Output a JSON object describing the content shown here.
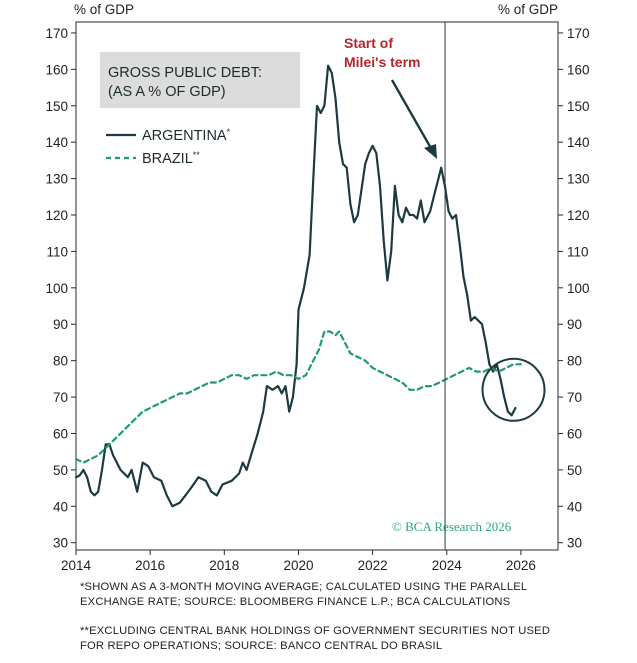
{
  "header": {
    "y_unit_left": "% of GDP",
    "y_unit_right": "% of GDP"
  },
  "colors": {
    "argentina": "#1d3a40",
    "brazil": "#1f9a72",
    "annotation_text": "#b3262d",
    "title_box": "#dcdcdc",
    "watermark": "#2aa87c"
  },
  "chart_data": {
    "type": "line",
    "title": "GROSS PUBLIC DEBT:",
    "subtitle": "(AS A % OF GDP)",
    "xlabel": "",
    "ylabel": "% of GDP",
    "xlim": [
      2014,
      2027
    ],
    "ylim": [
      28,
      173
    ],
    "x_ticks": [
      2014,
      2016,
      2018,
      2020,
      2022,
      2024,
      2026
    ],
    "y_ticks": [
      30,
      40,
      50,
      60,
      70,
      80,
      90,
      100,
      110,
      120,
      130,
      140,
      150,
      160,
      170
    ],
    "grid": false,
    "legend": [
      {
        "name": "ARGENTINA",
        "marker": "*",
        "style": "solid"
      },
      {
        "name": "BRAZIL",
        "marker": "**",
        "style": "dashed"
      }
    ],
    "series": [
      {
        "name": "ARGENTINA",
        "points": [
          [
            2014.0,
            48
          ],
          [
            2014.1,
            48.5
          ],
          [
            2014.2,
            50
          ],
          [
            2014.3,
            48
          ],
          [
            2014.4,
            44
          ],
          [
            2014.5,
            43
          ],
          [
            2014.6,
            44
          ],
          [
            2014.7,
            50
          ],
          [
            2014.8,
            57
          ],
          [
            2014.9,
            57
          ],
          [
            2015.0,
            54
          ],
          [
            2015.2,
            50
          ],
          [
            2015.4,
            48
          ],
          [
            2015.5,
            50
          ],
          [
            2015.65,
            44
          ],
          [
            2015.8,
            52
          ],
          [
            2015.95,
            51
          ],
          [
            2016.1,
            48
          ],
          [
            2016.3,
            47
          ],
          [
            2016.45,
            43
          ],
          [
            2016.6,
            40
          ],
          [
            2016.8,
            41
          ],
          [
            2016.95,
            43
          ],
          [
            2017.1,
            45
          ],
          [
            2017.3,
            48
          ],
          [
            2017.5,
            47
          ],
          [
            2017.65,
            44
          ],
          [
            2017.8,
            43
          ],
          [
            2017.95,
            46
          ],
          [
            2018.2,
            47
          ],
          [
            2018.4,
            49
          ],
          [
            2018.5,
            52
          ],
          [
            2018.6,
            50
          ],
          [
            2018.75,
            55
          ],
          [
            2018.9,
            60
          ],
          [
            2019.05,
            66
          ],
          [
            2019.15,
            73
          ],
          [
            2019.3,
            72
          ],
          [
            2019.45,
            73
          ],
          [
            2019.55,
            71
          ],
          [
            2019.65,
            73
          ],
          [
            2019.75,
            66
          ],
          [
            2019.85,
            70
          ],
          [
            2019.95,
            79
          ],
          [
            2020.0,
            94
          ],
          [
            2020.15,
            100
          ],
          [
            2020.3,
            109
          ],
          [
            2020.4,
            130
          ],
          [
            2020.5,
            150
          ],
          [
            2020.6,
            148
          ],
          [
            2020.7,
            150
          ],
          [
            2020.8,
            161
          ],
          [
            2020.9,
            159
          ],
          [
            2021.0,
            152
          ],
          [
            2021.1,
            140
          ],
          [
            2021.2,
            134
          ],
          [
            2021.3,
            133
          ],
          [
            2021.4,
            123
          ],
          [
            2021.5,
            118
          ],
          [
            2021.6,
            120
          ],
          [
            2021.7,
            127
          ],
          [
            2021.8,
            134
          ],
          [
            2021.9,
            137
          ],
          [
            2022.0,
            139
          ],
          [
            2022.1,
            137
          ],
          [
            2022.2,
            128
          ],
          [
            2022.3,
            113
          ],
          [
            2022.4,
            102
          ],
          [
            2022.5,
            110
          ],
          [
            2022.6,
            128
          ],
          [
            2022.7,
            120
          ],
          [
            2022.8,
            118
          ],
          [
            2022.9,
            122
          ],
          [
            2023.0,
            120
          ],
          [
            2023.1,
            120
          ],
          [
            2023.2,
            119
          ],
          [
            2023.3,
            124
          ],
          [
            2023.4,
            118
          ],
          [
            2023.55,
            121
          ],
          [
            2023.7,
            127
          ],
          [
            2023.8,
            131
          ],
          [
            2023.85,
            133
          ],
          [
            2023.95,
            128
          ],
          [
            2024.05,
            121
          ],
          [
            2024.15,
            119
          ],
          [
            2024.25,
            120
          ],
          [
            2024.35,
            112
          ],
          [
            2024.45,
            103
          ],
          [
            2024.55,
            98
          ],
          [
            2024.65,
            91
          ],
          [
            2024.75,
            92
          ],
          [
            2024.85,
            91
          ],
          [
            2024.95,
            90
          ],
          [
            2025.05,
            85
          ],
          [
            2025.15,
            79
          ],
          [
            2025.25,
            77
          ],
          [
            2025.35,
            79
          ],
          [
            2025.45,
            75
          ],
          [
            2025.55,
            70
          ],
          [
            2025.65,
            66
          ],
          [
            2025.75,
            65
          ],
          [
            2025.85,
            67
          ]
        ]
      },
      {
        "name": "BRAZIL",
        "points": [
          [
            2014.0,
            53
          ],
          [
            2014.2,
            52
          ],
          [
            2014.4,
            53
          ],
          [
            2014.6,
            54
          ],
          [
            2014.8,
            56
          ],
          [
            2015.0,
            58
          ],
          [
            2015.2,
            60
          ],
          [
            2015.4,
            62
          ],
          [
            2015.6,
            64
          ],
          [
            2015.8,
            66
          ],
          [
            2016.0,
            67
          ],
          [
            2016.2,
            68
          ],
          [
            2016.4,
            69
          ],
          [
            2016.6,
            70
          ],
          [
            2016.8,
            71
          ],
          [
            2017.0,
            71
          ],
          [
            2017.2,
            72
          ],
          [
            2017.4,
            73
          ],
          [
            2017.6,
            74
          ],
          [
            2017.8,
            74
          ],
          [
            2018.0,
            75
          ],
          [
            2018.2,
            76
          ],
          [
            2018.4,
            76
          ],
          [
            2018.6,
            75
          ],
          [
            2018.8,
            76
          ],
          [
            2019.0,
            76
          ],
          [
            2019.2,
            76
          ],
          [
            2019.4,
            77
          ],
          [
            2019.6,
            76
          ],
          [
            2019.8,
            76
          ],
          [
            2020.0,
            75
          ],
          [
            2020.2,
            76
          ],
          [
            2020.4,
            80
          ],
          [
            2020.55,
            83
          ],
          [
            2020.7,
            88
          ],
          [
            2020.85,
            88
          ],
          [
            2021.0,
            87
          ],
          [
            2021.1,
            88
          ],
          [
            2021.25,
            85
          ],
          [
            2021.4,
            82
          ],
          [
            2021.6,
            81
          ],
          [
            2021.8,
            80
          ],
          [
            2022.0,
            78
          ],
          [
            2022.2,
            77
          ],
          [
            2022.4,
            76
          ],
          [
            2022.6,
            75
          ],
          [
            2022.8,
            74
          ],
          [
            2023.0,
            72
          ],
          [
            2023.2,
            72
          ],
          [
            2023.4,
            73
          ],
          [
            2023.6,
            73
          ],
          [
            2023.8,
            74
          ],
          [
            2024.0,
            75
          ],
          [
            2024.2,
            76
          ],
          [
            2024.4,
            77
          ],
          [
            2024.6,
            78
          ],
          [
            2024.8,
            77
          ],
          [
            2025.0,
            77
          ],
          [
            2025.2,
            78
          ],
          [
            2025.4,
            77
          ],
          [
            2025.6,
            78
          ],
          [
            2025.8,
            79
          ],
          [
            2026.0,
            79
          ]
        ]
      }
    ],
    "annotations": {
      "term_start_label_line1": "Start of",
      "term_start_label_line2": "Milei's term",
      "term_start_year": 2023.9,
      "circle_center": [
        2025.8,
        72
      ]
    }
  },
  "watermark": {
    "text": "© BCA Research 2026"
  },
  "footnotes": {
    "line1": "*SHOWN AS A 3-MONTH MOVING AVERAGE; CALCULATED USING THE PARALLEL EXCHANGE RATE; SOURCE: BLOOMBERG FINANCE L.P.; BCA CALCULATIONS",
    "line2": "**EXCLUDING CENTRAL BANK HOLDINGS OF GOVERNMENT SECURITIES NOT USED FOR REPO OPERATIONS; SOURCE: BANCO CENTRAL DO BRASIL"
  }
}
